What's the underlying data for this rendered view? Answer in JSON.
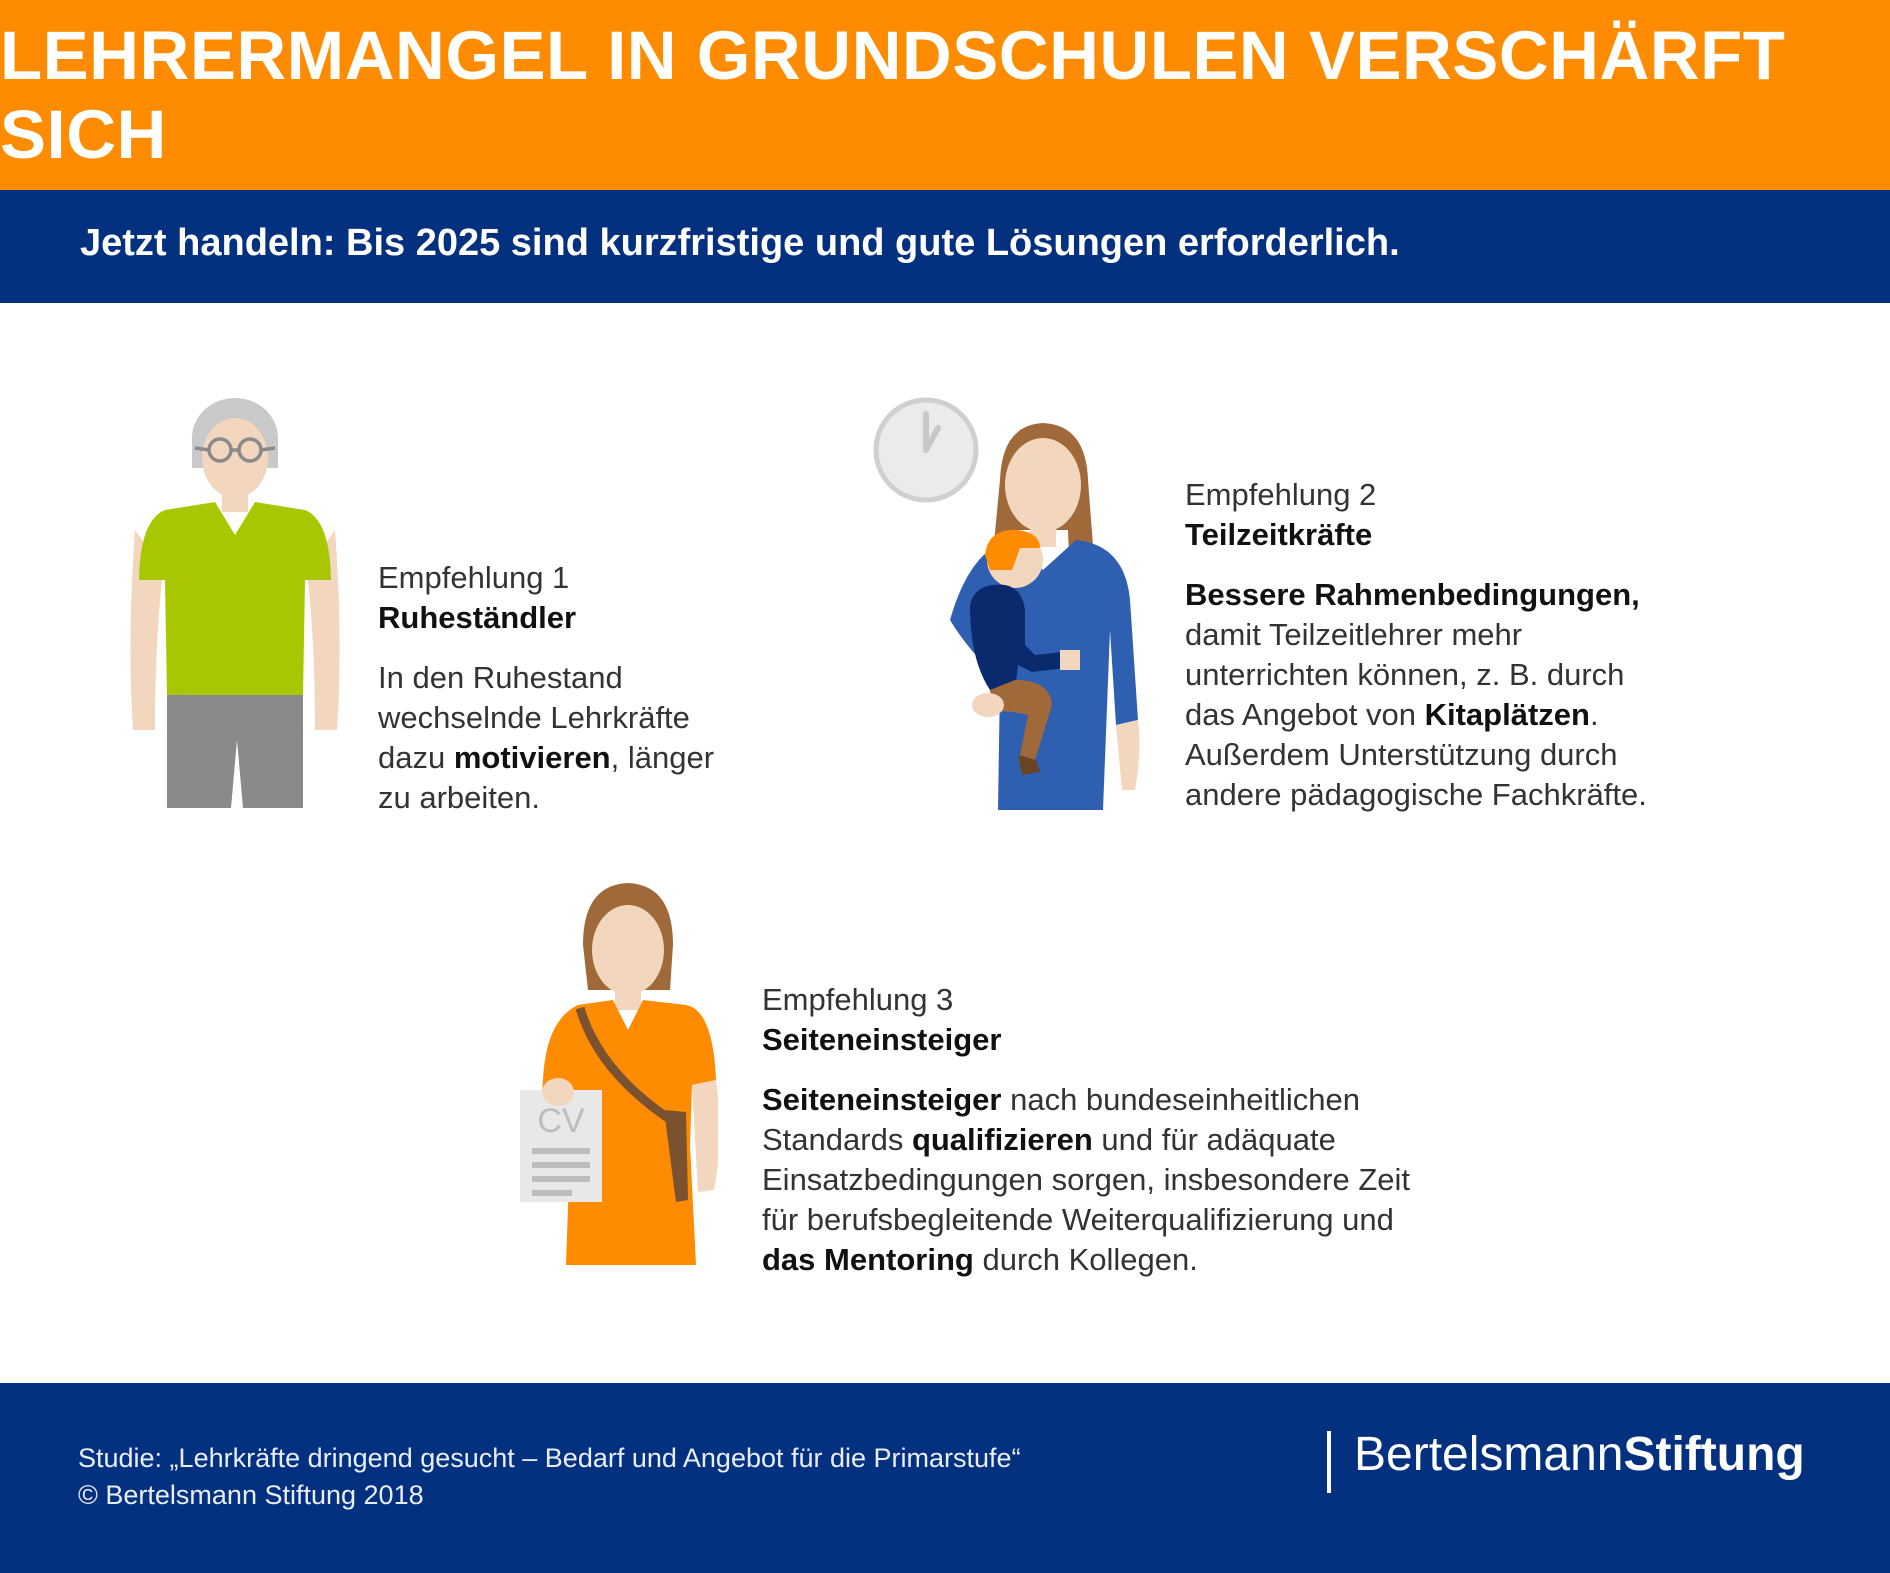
{
  "header": {
    "title": "LEHRERMANGEL IN GRUNDSCHULEN VERSCHÄRFT SICH",
    "subtitle": "Jetzt handeln: Bis 2025 sind kurzfristige und gute Lösungen erforderlich."
  },
  "recommendations": [
    {
      "kicker": "Empfehlung 1",
      "title": "Ruheständler",
      "body": [
        {
          "t": "In den Ruhestand",
          "br": true
        },
        {
          "t": "wechselnde Lehrkräfte",
          "br": true
        },
        {
          "t": "dazu "
        },
        {
          "t": "motivieren",
          "b": true
        },
        {
          "t": ", länger",
          "br": true
        },
        {
          "t": "zu arbeiten."
        }
      ]
    },
    {
      "kicker": "Empfehlung 2",
      "title": "Teilzeitkräfte",
      "body": [
        {
          "t": "Bessere Rahmenbedingungen,",
          "b": true,
          "br": true
        },
        {
          "t": "damit Teilzeitlehrer mehr",
          "br": true
        },
        {
          "t": "unterrichten können, z. B. durch",
          "br": true
        },
        {
          "t": "das Angebot von "
        },
        {
          "t": "Kitaplätzen",
          "b": true
        },
        {
          "t": ".",
          "br": true
        },
        {
          "t": "Außerdem Unterstützung durch",
          "br": true
        },
        {
          "t": "andere pädagogische Fachkräfte."
        }
      ]
    },
    {
      "kicker": "Empfehlung 3",
      "title": "Seiteneinsteiger",
      "body": [
        {
          "t": "Seiteneinsteiger",
          "b": true
        },
        {
          "t": " nach bundeseinheitlichen",
          "br": true
        },
        {
          "t": "Standards "
        },
        {
          "t": "qualifizieren",
          "b": true
        },
        {
          "t": " und für adäquate",
          "br": true
        },
        {
          "t": "Einsatzbedingungen sorgen, insbesondere Zeit",
          "br": true
        },
        {
          "t": "für berufsbegleitende Weiterqualifizierung und",
          "br": true
        },
        {
          "t": "das Mentoring",
          "b": true
        },
        {
          "t": " durch Kollegen."
        }
      ]
    }
  ],
  "figures": {
    "retiree": "retiree-illustration",
    "mother": "mother-with-child-illustration",
    "clock": "clock-icon",
    "career_changer": "career-changer-illustration",
    "cv_label": "CV"
  },
  "footer": {
    "study_line1": "Studie: „Lehrkräfte dringend gesucht – Bedarf und Angebot für die Primarstufe“",
    "study_line2": "© Bertelsmann Stiftung 2018",
    "logo_part1": "Bertelsmann",
    "logo_part2": "Stiftung"
  },
  "colors": {
    "banner": "#ff8c00",
    "navy": "#04317f",
    "green_shirt": "#a9c700",
    "blue_dress": "#2f5fb0",
    "orange_dress": "#ff8c00"
  }
}
